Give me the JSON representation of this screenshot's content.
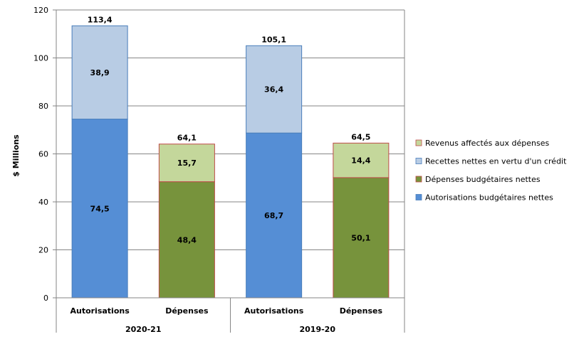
{
  "chart_data": {
    "type": "bar",
    "stacked": true,
    "ylabel": "$ Millions",
    "ylim": [
      0,
      120
    ],
    "yticks": [
      0,
      20,
      40,
      60,
      80,
      100,
      120
    ],
    "grid": true,
    "legend_position": "right",
    "groups": [
      {
        "label": "2020-21",
        "bars": [
          {
            "label": "Autorisations",
            "total_label": "113,4",
            "segments": [
              {
                "series": "Autorisations budgétaires nettes",
                "value": 74.5,
                "label": "74,5"
              },
              {
                "series": "Recettes nettes en vertu d'un crédit",
                "value": 38.9,
                "label": "38,9"
              }
            ]
          },
          {
            "label": "Dépenses",
            "total_label": "64,1",
            "segments": [
              {
                "series": "Dépenses budgétaires nettes",
                "value": 48.4,
                "label": "48,4"
              },
              {
                "series": "Revenus affectés aux dépenses",
                "value": 15.7,
                "label": "15,7"
              }
            ]
          }
        ]
      },
      {
        "label": "2019-20",
        "bars": [
          {
            "label": "Autorisations",
            "total_label": "105,1",
            "segments": [
              {
                "series": "Autorisations budgétaires nettes",
                "value": 68.7,
                "label": "68,7"
              },
              {
                "series": "Recettes nettes en vertu d'un crédit",
                "value": 36.4,
                "label": "36,4"
              }
            ]
          },
          {
            "label": "Dépenses",
            "total_label": "64,5",
            "segments": [
              {
                "series": "Dépenses budgétaires nettes",
                "value": 50.1,
                "label": "50,1"
              },
              {
                "series": "Revenus affectés aux dépenses",
                "value": 14.4,
                "label": "14,4"
              }
            ]
          }
        ]
      }
    ],
    "legend": [
      {
        "name": "Revenus affectés aux dépenses",
        "color": "#C4D79B"
      },
      {
        "name": "Recettes nettes en vertu d'un crédit",
        "color": "#B8CCE4"
      },
      {
        "name": "Dépenses budgétaires nettes",
        "color": "#77933C"
      },
      {
        "name": "Autorisations budgétaires nettes",
        "color": "#558ED5"
      }
    ]
  }
}
